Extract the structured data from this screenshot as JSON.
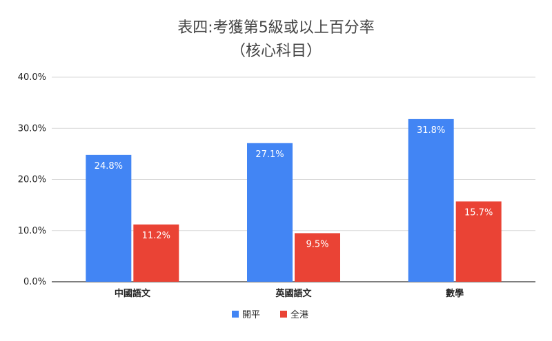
{
  "chart_data": {
    "type": "bar",
    "title": "表四:考獲第5級或以上百分率",
    "subtitle": "（核心科目）",
    "categories": [
      "中國語文",
      "英國語文",
      "數學"
    ],
    "series": [
      {
        "name": "開平",
        "values": [
          24.8,
          27.1,
          31.8
        ],
        "labels": [
          "24.8%",
          "27.1%",
          "31.8%"
        ],
        "color": "#4285F4"
      },
      {
        "name": "全港",
        "values": [
          11.2,
          9.5,
          15.7
        ],
        "labels": [
          "11.2%",
          "9.5%",
          "15.7%"
        ],
        "color": "#EA4335"
      }
    ],
    "ylim": [
      0,
      40
    ],
    "yticks": [
      "0.0%",
      "10.0%",
      "20.0%",
      "30.0%",
      "40.0%"
    ],
    "xlabel": "",
    "ylabel": "",
    "grid": true,
    "legend_position": "bottom"
  }
}
